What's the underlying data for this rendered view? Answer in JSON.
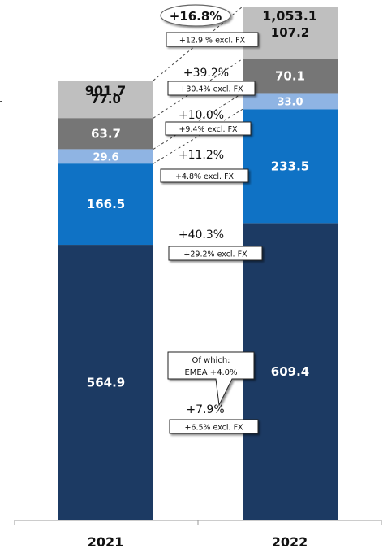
{
  "chart_data": {
    "type": "bar",
    "stacked": true,
    "categories": [
      "2021",
      "2022"
    ],
    "series": [
      {
        "values": [
          564.9,
          609.4
        ],
        "color": "#1c3a63",
        "label_color": "#ffffff"
      },
      {
        "values": [
          166.5,
          233.5
        ],
        "color": "#0f72c5",
        "label_color": "#ffffff"
      },
      {
        "values": [
          29.6,
          33.0
        ],
        "color": "#8fb4e3",
        "label_color": "#ffffff"
      },
      {
        "values": [
          63.7,
          70.1
        ],
        "color": "#767676",
        "label_color": "#ffffff"
      },
      {
        "values": [
          77.0,
          107.2
        ],
        "color": "#bfbfbf",
        "label_color": "#111111"
      }
    ],
    "value_labels": [
      [
        "564.9",
        "609.4"
      ],
      [
        "166.5",
        "233.5"
      ],
      [
        "29.6",
        "33.0"
      ],
      [
        "63.7",
        "70.1"
      ],
      [
        "77.0",
        "107.2"
      ]
    ],
    "totals": [
      901.7,
      1053.1
    ],
    "total_labels": [
      "901.7",
      "1,053.1"
    ],
    "total_growth": "+16.8%",
    "total_growth_fx": "+12.9 % excl. FX",
    "segment_growth": [
      {
        "pct": "+7.9%",
        "fx": "+6.5% excl. FX"
      },
      {
        "pct": "+40.3%",
        "fx": "+29.2% excl. FX"
      },
      {
        "pct": "+11.2%",
        "fx": "+4.8% excl. FX"
      },
      {
        "pct": "+10.0%",
        "fx": "+9.4% excl. FX"
      },
      {
        "pct": "+39.2%",
        "fx": "+30.4% excl. FX"
      }
    ],
    "callout": {
      "line1": "Of which:",
      "line2": "EMEA +4.0%"
    },
    "colors": {
      "total_text": "#111111",
      "axis": "#999999"
    }
  }
}
